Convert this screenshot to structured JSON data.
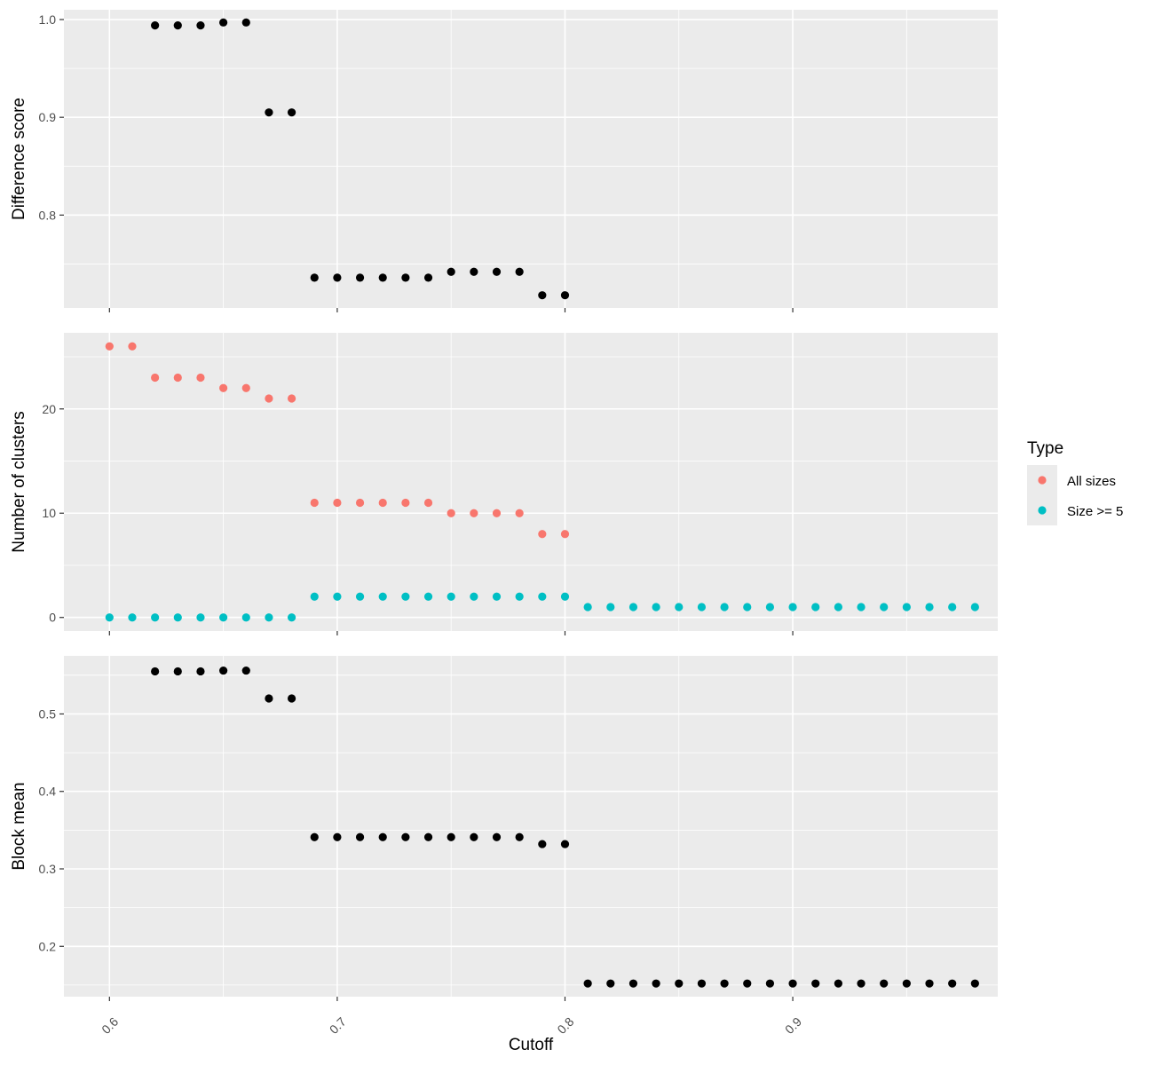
{
  "chart_data": [
    {
      "type": "scatter",
      "ylabel": "Difference score",
      "xlim": [
        0.58,
        0.99
      ],
      "ylim": [
        0.705,
        1.01
      ],
      "y_ticks": [
        0.8,
        0.9,
        1.0
      ],
      "y_tick_labels": [
        "0.8",
        "0.9",
        "1.0"
      ],
      "series": [
        {
          "color": "#000000",
          "x": [
            0.62,
            0.63,
            0.64,
            0.65,
            0.66,
            0.67,
            0.68,
            0.69,
            0.7,
            0.71,
            0.72,
            0.73,
            0.74,
            0.75,
            0.76,
            0.77,
            0.78,
            0.79,
            0.8
          ],
          "y": [
            0.994,
            0.994,
            0.994,
            0.997,
            0.997,
            0.905,
            0.905,
            0.736,
            0.736,
            0.736,
            0.736,
            0.736,
            0.736,
            0.742,
            0.742,
            0.742,
            0.742,
            0.718,
            0.718
          ]
        }
      ]
    },
    {
      "type": "scatter",
      "ylabel": "Number of clusters",
      "xlim": [
        0.58,
        0.99
      ],
      "ylim": [
        -1.3,
        27.3
      ],
      "y_ticks": [
        0,
        10,
        20
      ],
      "y_tick_labels": [
        "0",
        "10",
        "20"
      ],
      "series": [
        {
          "name": "All sizes",
          "color": "#f8766d",
          "x": [
            0.6,
            0.61,
            0.62,
            0.63,
            0.64,
            0.65,
            0.66,
            0.67,
            0.68,
            0.69,
            0.7,
            0.71,
            0.72,
            0.73,
            0.74,
            0.75,
            0.76,
            0.77,
            0.78,
            0.79,
            0.8
          ],
          "y": [
            26,
            26,
            23,
            23,
            23,
            22,
            22,
            21,
            21,
            11,
            11,
            11,
            11,
            11,
            11,
            10,
            10,
            10,
            10,
            8,
            8
          ]
        },
        {
          "name": "Size >= 5",
          "color": "#00bfc4",
          "x": [
            0.6,
            0.61,
            0.62,
            0.63,
            0.64,
            0.65,
            0.66,
            0.67,
            0.68,
            0.69,
            0.7,
            0.71,
            0.72,
            0.73,
            0.74,
            0.75,
            0.76,
            0.77,
            0.78,
            0.79,
            0.8,
            0.81,
            0.82,
            0.83,
            0.84,
            0.85,
            0.86,
            0.87,
            0.88,
            0.89,
            0.9,
            0.91,
            0.92,
            0.93,
            0.94,
            0.95,
            0.96,
            0.97,
            0.98
          ],
          "y": [
            0,
            0,
            0,
            0,
            0,
            0,
            0,
            0,
            0,
            2,
            2,
            2,
            2,
            2,
            2,
            2,
            2,
            2,
            2,
            2,
            2,
            1,
            1,
            1,
            1,
            1,
            1,
            1,
            1,
            1,
            1,
            1,
            1,
            1,
            1,
            1,
            1,
            1,
            1
          ]
        }
      ]
    },
    {
      "type": "scatter",
      "ylabel": "Block mean",
      "xlabel": "Cutoff",
      "xlim": [
        0.58,
        0.99
      ],
      "ylim": [
        0.135,
        0.575
      ],
      "y_ticks": [
        0.2,
        0.3,
        0.4,
        0.5
      ],
      "y_tick_labels": [
        "0.2",
        "0.3",
        "0.4",
        "0.5"
      ],
      "series": [
        {
          "color": "#000000",
          "x": [
            0.62,
            0.63,
            0.64,
            0.65,
            0.66,
            0.67,
            0.68,
            0.69,
            0.7,
            0.71,
            0.72,
            0.73,
            0.74,
            0.75,
            0.76,
            0.77,
            0.78,
            0.79,
            0.8,
            0.81,
            0.82,
            0.83,
            0.84,
            0.85,
            0.86,
            0.87,
            0.88,
            0.89,
            0.9,
            0.91,
            0.92,
            0.93,
            0.94,
            0.95,
            0.96,
            0.97,
            0.98
          ],
          "y": [
            0.555,
            0.555,
            0.555,
            0.556,
            0.556,
            0.52,
            0.52,
            0.341,
            0.341,
            0.341,
            0.341,
            0.341,
            0.341,
            0.341,
            0.341,
            0.341,
            0.341,
            0.332,
            0.332,
            0.152,
            0.152,
            0.152,
            0.152,
            0.152,
            0.152,
            0.152,
            0.152,
            0.152,
            0.152,
            0.152,
            0.152,
            0.152,
            0.152,
            0.152,
            0.152,
            0.152,
            0.152
          ]
        }
      ]
    }
  ],
  "x_axis": {
    "title": "Cutoff",
    "ticks": [
      0.6,
      0.7,
      0.8,
      0.9
    ],
    "tick_labels": [
      "0.6",
      "0.7",
      "0.8",
      "0.9"
    ]
  },
  "legend": {
    "title": "Type",
    "placement": "right",
    "entries": [
      {
        "label": "All sizes",
        "color": "#f8766d"
      },
      {
        "label": "Size >= 5",
        "color": "#00bfc4"
      }
    ]
  }
}
